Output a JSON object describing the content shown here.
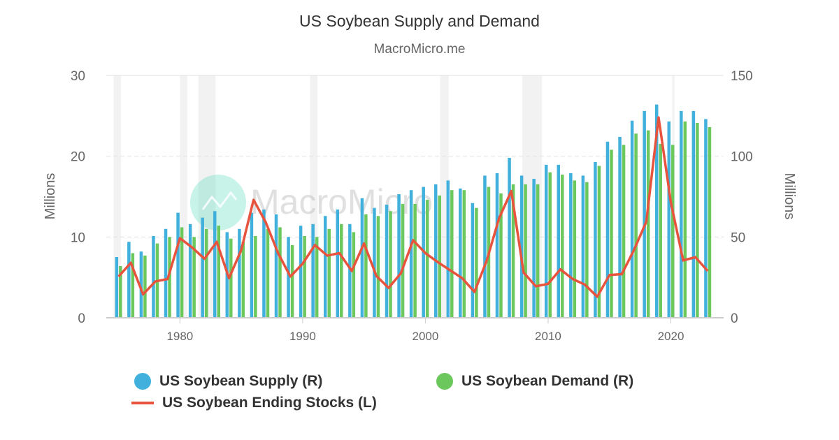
{
  "title": "US Soybean Supply and Demand",
  "subtitle": "MacroMicro.me",
  "watermark": "MacroMicro",
  "chart_data": {
    "type": "bar+line",
    "x_range": [
      1974,
      2024.3
    ],
    "x_ticks": [
      1980,
      1990,
      2000,
      2010,
      2020
    ],
    "left_axis": {
      "label": "Millions",
      "range": [
        0,
        30
      ],
      "ticks": [
        0,
        10,
        20,
        30
      ]
    },
    "right_axis": {
      "label": "Millions",
      "range": [
        0,
        150
      ],
      "ticks": [
        0,
        50,
        100,
        150
      ]
    },
    "grid": true,
    "legend_position": "bottom",
    "shaded_periods": [
      [
        1974.6,
        1975.2
      ],
      [
        1980.0,
        1980.6
      ],
      [
        1981.5,
        1982.9
      ],
      [
        1990.6,
        1991.2
      ],
      [
        2001.2,
        2001.9
      ],
      [
        2007.9,
        2009.5
      ],
      [
        2020.1,
        2020.3
      ]
    ],
    "years": [
      1975,
      1976,
      1977,
      1978,
      1979,
      1980,
      1981,
      1982,
      1983,
      1984,
      1985,
      1986,
      1987,
      1988,
      1989,
      1990,
      1991,
      1992,
      1993,
      1994,
      1995,
      1996,
      1997,
      1998,
      1999,
      2000,
      2001,
      2002,
      2003,
      2004,
      2005,
      2006,
      2007,
      2008,
      2009,
      2010,
      2011,
      2012,
      2013,
      2014,
      2015,
      2016,
      2017,
      2018,
      2019,
      2020,
      2021,
      2022,
      2023
    ],
    "series": [
      {
        "name": "US Soybean Supply (R)",
        "type": "bar",
        "axis": "right",
        "color": "#41b0dc",
        "values": [
          37.6,
          47,
          41,
          50.6,
          55,
          65,
          58,
          62,
          66,
          53,
          55,
          65,
          67,
          64,
          50,
          57,
          58,
          63,
          67,
          58,
          74,
          68,
          70,
          76.5,
          79,
          81,
          82.6,
          85,
          80,
          71,
          88,
          89.5,
          99,
          88,
          86,
          94.7,
          94.7,
          89.5,
          88,
          96.4,
          109,
          112,
          122,
          128,
          132,
          121.5,
          128,
          128,
          123
        ]
      },
      {
        "name": "US Soybean Demand (R)",
        "type": "bar",
        "axis": "right",
        "color": "#6cc85c",
        "values": [
          32,
          40,
          38.5,
          46,
          50,
          56,
          50,
          55,
          57,
          49,
          47,
          50.6,
          55,
          56,
          45,
          50.6,
          50,
          55,
          58,
          53,
          64,
          63,
          66,
          70.5,
          70.5,
          73,
          75.7,
          79,
          79,
          68,
          81,
          77,
          82.6,
          82.6,
          82.6,
          90,
          88.6,
          85,
          84,
          94,
          104,
          107,
          114,
          116,
          107.6,
          107,
          121.5,
          120.6,
          118
        ]
      },
      {
        "name": "US Soybean Ending Stocks (L)",
        "type": "line",
        "axis": "left",
        "color": "#e8533d",
        "values": [
          5.1,
          6.8,
          2.9,
          4.5,
          4.8,
          9.85,
          8.7,
          7.3,
          9.4,
          4.9,
          8.4,
          14.6,
          11.8,
          8,
          5.1,
          6.7,
          9,
          7.7,
          8,
          5.8,
          9.2,
          5.2,
          3.7,
          5.5,
          9.6,
          8,
          6.9,
          5.9,
          4.9,
          3.2,
          7.1,
          12.3,
          15.7,
          5.6,
          3.9,
          4.2,
          6.0,
          4.8,
          4.1,
          2.6,
          5.3,
          5.4,
          8.4,
          11.9,
          24.8,
          14.3,
          7.1,
          7.5,
          5.8
        ]
      }
    ]
  }
}
